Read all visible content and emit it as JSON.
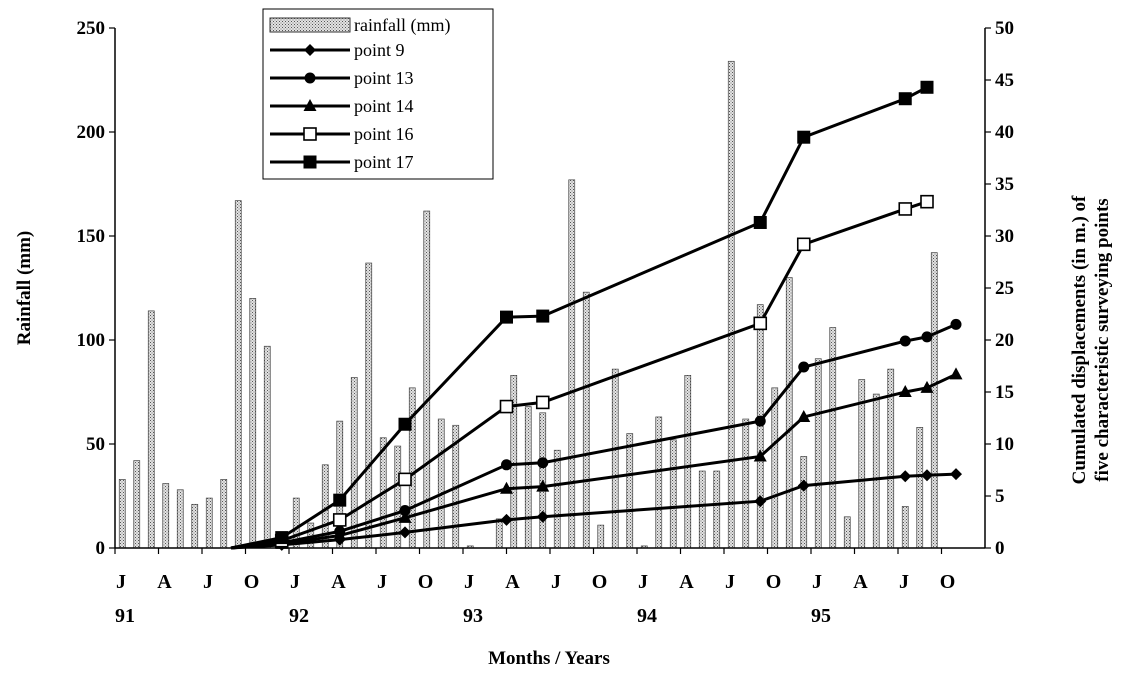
{
  "chart_data": {
    "type": "bar+line",
    "xlabel": "Months / Years",
    "ylabel": "Rainfall (mm)",
    "y2label_lines": [
      "Cumulated displacements (in m.) of",
      "five characteristic surveying points"
    ],
    "ylim": [
      0,
      250
    ],
    "y2lim": [
      0,
      50
    ],
    "yticks": [
      0,
      50,
      100,
      150,
      200,
      250
    ],
    "y2ticks": [
      0,
      5,
      10,
      15,
      20,
      25,
      30,
      35,
      40,
      45,
      50
    ],
    "xlim": [
      0,
      60
    ],
    "month_ticks": [
      {
        "t": 0,
        "label": "J"
      },
      {
        "t": 3,
        "label": "A"
      },
      {
        "t": 6,
        "label": "J"
      },
      {
        "t": 9,
        "label": "O"
      },
      {
        "t": 12,
        "label": "J"
      },
      {
        "t": 15,
        "label": "A"
      },
      {
        "t": 18,
        "label": "J"
      },
      {
        "t": 21,
        "label": "O"
      },
      {
        "t": 24,
        "label": "J"
      },
      {
        "t": 27,
        "label": "A"
      },
      {
        "t": 30,
        "label": "J"
      },
      {
        "t": 33,
        "label": "O"
      },
      {
        "t": 36,
        "label": "J"
      },
      {
        "t": 39,
        "label": "A"
      },
      {
        "t": 42,
        "label": "J"
      },
      {
        "t": 45,
        "label": "O"
      },
      {
        "t": 48,
        "label": "J"
      },
      {
        "t": 51,
        "label": "A"
      },
      {
        "t": 54,
        "label": "J"
      },
      {
        "t": 57,
        "label": "O"
      }
    ],
    "year_ticks": [
      {
        "t": 0,
        "label": "91"
      },
      {
        "t": 12,
        "label": "92"
      },
      {
        "t": 24,
        "label": "93"
      },
      {
        "t": 36,
        "label": "94"
      },
      {
        "t": 48,
        "label": "95"
      }
    ],
    "rainfall": {
      "name": "rainfall (mm)",
      "months": [
        0,
        1,
        2,
        3,
        4,
        5,
        6,
        7,
        8,
        9,
        10,
        11,
        12,
        13,
        14,
        15,
        16,
        17,
        18,
        19,
        20,
        21,
        22,
        23,
        24,
        25,
        26,
        27,
        28,
        29,
        30,
        31,
        32,
        33,
        34,
        35,
        36,
        37,
        38,
        39,
        40,
        41,
        42,
        43,
        44,
        45,
        46,
        47,
        48,
        49,
        50,
        51,
        52,
        53,
        54,
        55,
        56,
        57,
        58,
        59
      ],
      "values": [
        33,
        42,
        114,
        31,
        28,
        21,
        24,
        33,
        167,
        120,
        97,
        0,
        24,
        12,
        40,
        61,
        82,
        137,
        53,
        49,
        77,
        162,
        62,
        59,
        1,
        0,
        14,
        83,
        68,
        65,
        47,
        177,
        123,
        11,
        86,
        55,
        1,
        63,
        52,
        83,
        37,
        37,
        234,
        62,
        117,
        77,
        130,
        44,
        91,
        106,
        15,
        81,
        74,
        86,
        20,
        58,
        142,
        0,
        0,
        0
      ]
    },
    "series": [
      {
        "name": "point 9",
        "marker": "diamond",
        "points": [
          [
            8,
            0
          ],
          [
            11.5,
            0.3
          ],
          [
            15.5,
            0.8
          ],
          [
            20,
            1.5
          ],
          [
            27,
            2.7
          ],
          [
            29.5,
            3.0
          ],
          [
            44.5,
            4.5
          ],
          [
            47.5,
            6.0
          ],
          [
            54.5,
            6.9
          ],
          [
            56,
            7.0
          ],
          [
            58,
            7.1
          ]
        ]
      },
      {
        "name": "point 13",
        "marker": "circle",
        "points": [
          [
            8,
            0
          ],
          [
            11.5,
            0.5
          ],
          [
            15.5,
            1.6
          ],
          [
            20,
            3.6
          ],
          [
            27,
            8.0
          ],
          [
            29.5,
            8.2
          ],
          [
            44.5,
            12.2
          ],
          [
            47.5,
            17.4
          ],
          [
            54.5,
            19.9
          ],
          [
            56,
            20.3
          ],
          [
            58,
            21.5
          ]
        ]
      },
      {
        "name": "point 14",
        "marker": "triangle",
        "points": [
          [
            8,
            0
          ],
          [
            11.5,
            0.4
          ],
          [
            15.5,
            1.2
          ],
          [
            20,
            2.9
          ],
          [
            27,
            5.7
          ],
          [
            29.5,
            5.9
          ],
          [
            44.5,
            8.8
          ],
          [
            47.5,
            12.6
          ],
          [
            54.5,
            15.0
          ],
          [
            56,
            15.4
          ],
          [
            58,
            16.7
          ]
        ]
      },
      {
        "name": "point 16",
        "marker": "square-open",
        "points": [
          [
            8,
            0
          ],
          [
            11.5,
            0.7
          ],
          [
            15.5,
            2.7
          ],
          [
            20,
            6.6
          ],
          [
            27,
            13.6
          ],
          [
            29.5,
            14.0
          ],
          [
            44.5,
            21.6
          ],
          [
            47.5,
            29.2
          ],
          [
            54.5,
            32.6
          ],
          [
            56,
            33.3
          ]
        ]
      },
      {
        "name": "point 17",
        "marker": "square",
        "points": [
          [
            8,
            0
          ],
          [
            11.5,
            1.0
          ],
          [
            15.5,
            4.6
          ],
          [
            20,
            11.9
          ],
          [
            27,
            22.2
          ],
          [
            29.5,
            22.3
          ],
          [
            44.5,
            31.3
          ],
          [
            47.5,
            39.5
          ],
          [
            54.5,
            43.2
          ],
          [
            56,
            44.3
          ]
        ]
      }
    ],
    "legend_position": "top-left",
    "grid": false,
    "colors": {
      "line": "#000000",
      "bar_fill": "#c9c9c9",
      "bar_edge": "#444444"
    }
  }
}
